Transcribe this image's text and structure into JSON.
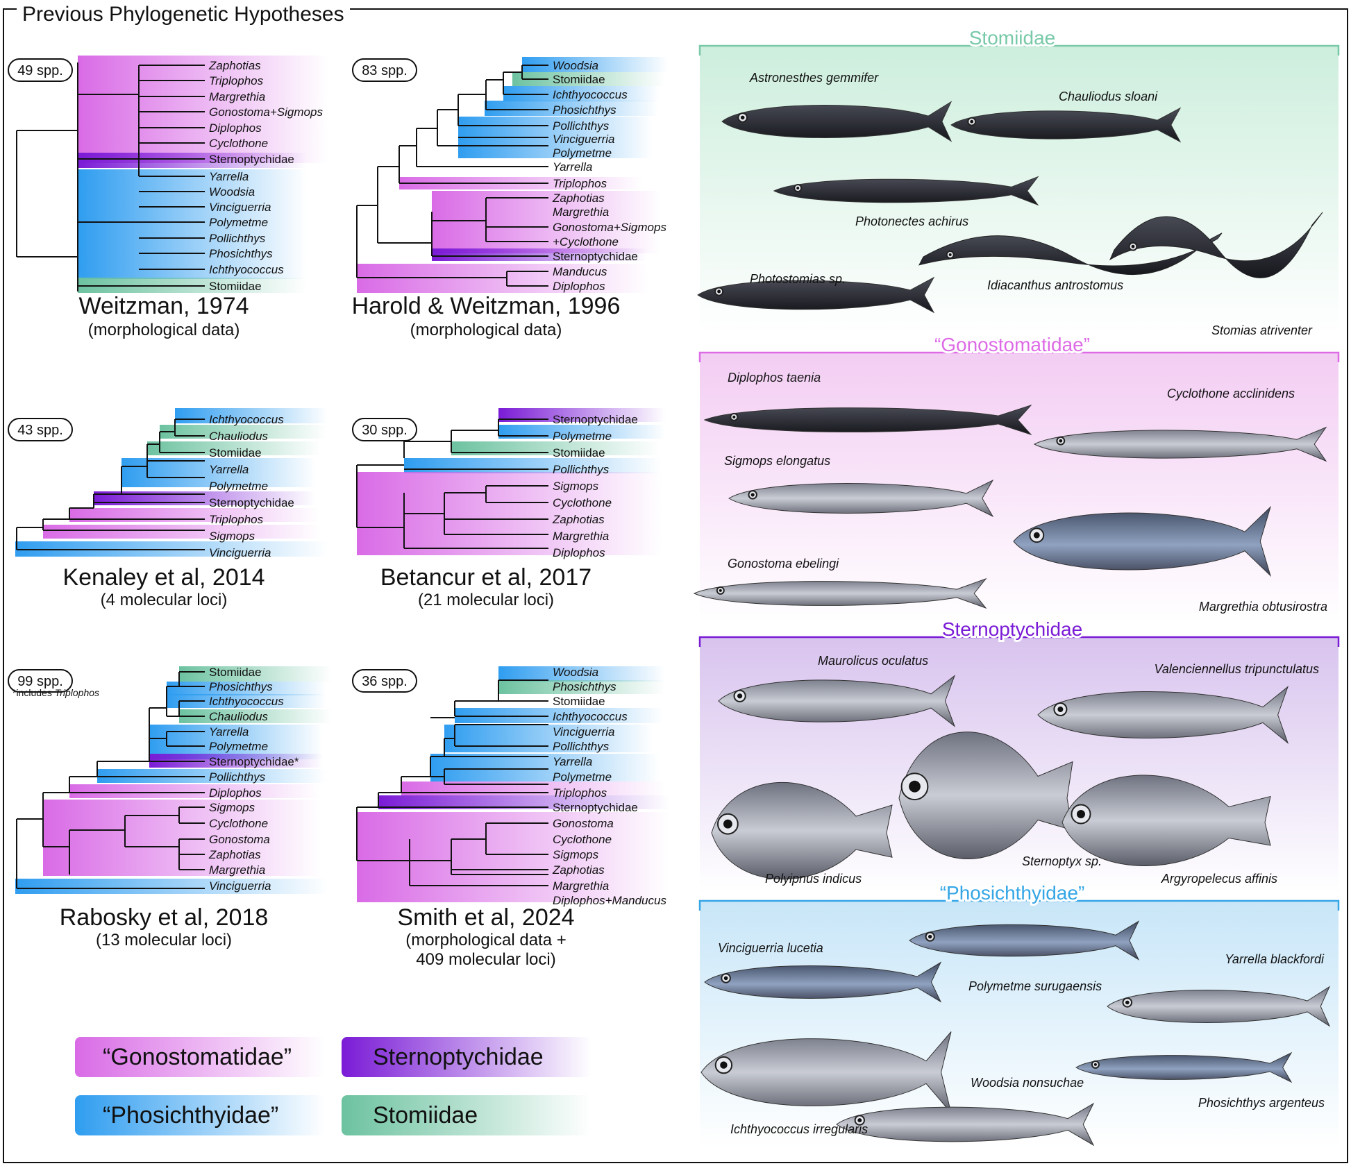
{
  "title": "Previous Phylogenetic Hypotheses",
  "colors": {
    "gonostomatidae": "#d96be6",
    "phosichthyidae": "#2f9df0",
    "sternoptychidae": "#7a1bd6",
    "stomiidae": "#6cc2a0",
    "stomiidae_label": "#78c9a8",
    "gonostomatidae_label": "#dd6be6",
    "sternoptychidae_label": "#7a1bd6",
    "phosichthyidae_label": "#35a6e6"
  },
  "trees": [
    {
      "id": "weitzman-1974",
      "species": "49 spp.",
      "title": "Weitzman, 1974",
      "subtitle": [
        "(morphological data)"
      ],
      "taxa": [
        "Zaphotias",
        "Triplophos",
        "Margrethia",
        "Gonostoma+Sigmops",
        "Diplophos",
        "Cyclothone",
        "Sternoptychidae",
        "Yarrella",
        "Woodsia",
        "Vinciguerria",
        "Polymetme",
        "Pollichthys",
        "Phosichthys",
        "Ichthyococcus",
        "Stomiidae"
      ]
    },
    {
      "id": "harold-weitzman-1996",
      "species": "83 spp.",
      "title": "Harold & Weitzman, 1996",
      "subtitle": [
        "(morphological data)"
      ],
      "taxa": [
        "Woodsia",
        "Stomiidae",
        "Ichthyococcus",
        "Phosichthys",
        "Pollichthys",
        "Vinciguerria",
        "Polymetme",
        "Yarrella",
        "Triplophos",
        "Zaphotias",
        "Margrethia",
        "Gonostoma+Sigmops",
        "+Cyclothone",
        "Sternoptychidae",
        "Manducus",
        "Diplophos"
      ]
    },
    {
      "id": "kenaley-2014",
      "species": "43 spp.",
      "title": "Kenaley et al, 2014",
      "subtitle": [
        "(4 molecular loci)"
      ],
      "taxa": [
        "Ichthyococcus",
        "Chauliodus",
        "Stomiidae",
        "Yarrella",
        "Polymetme",
        "Sternoptychidae",
        "Triplophos",
        "Sigmops",
        "Vinciguerria"
      ]
    },
    {
      "id": "betancur-2017",
      "species": "30 spp.",
      "title": "Betancur et al, 2017",
      "subtitle": [
        "(21 molecular loci)"
      ],
      "taxa": [
        "Sternoptychidae",
        "Polymetme",
        "Stomiidae",
        "Pollichthys",
        "Sigmops",
        "Cyclothone",
        "Zaphotias",
        "Margrethia",
        "Diplophos"
      ]
    },
    {
      "id": "rabosky-2018",
      "species": "99 spp.",
      "title": "Rabosky et al, 2018",
      "subtitle": [
        "(13 molecular loci)"
      ],
      "note": "*includes ",
      "note_italic": "Triplophos",
      "taxa": [
        "Stomiidae",
        "Phosichthys",
        "Ichthyococcus",
        "Chauliodus",
        "Yarrella",
        "Polymetme",
        "Sternoptychidae*",
        "Pollichthys",
        "Diplophos",
        "Sigmops",
        "Cyclothone",
        "Gonostoma",
        "Zaphotias",
        "Margrethia",
        "Vinciguerria"
      ]
    },
    {
      "id": "smith-2024",
      "species": "36 spp.",
      "title": "Smith et al, 2024",
      "subtitle": [
        "(morphological data +",
        "409 molecular loci)"
      ],
      "taxa": [
        "Woodsia",
        "Phosichthys",
        "Stomiidae",
        "Ichthyococcus",
        "Vinciguerria",
        "Pollichthys",
        "Yarrella",
        "Polymetme",
        "Triplophos",
        "Sternoptychidae",
        "Gonostoma",
        "Cyclothone",
        "Sigmops",
        "Zaphotias",
        "Margrethia",
        "Diplophos+Manducus"
      ]
    }
  ],
  "legend": [
    "“Gonostomatidae”",
    "Sternoptychidae",
    "“Phosichthyidae”",
    "Stomiidae"
  ],
  "panels": [
    {
      "id": "stomiidae",
      "label": "Stomiidae",
      "fish": [
        "Astronesthes gemmifer",
        "Chauliodus sloani",
        "Photonectes achirus",
        "Idiacanthus antrostomus",
        "Photostomias sp.",
        "Stomias atriventer"
      ]
    },
    {
      "id": "gonostomatidae",
      "label": "“Gonostomatidae”",
      "fish": [
        "Diplophos taenia",
        "Cyclothone acclinidens",
        "Sigmops elongatus",
        "Gonostoma ebelingi",
        "Margrethia obtusirostra"
      ]
    },
    {
      "id": "sternoptychidae",
      "label": "Sternoptychidae",
      "fish": [
        "Maurolicus oculatus",
        "Valenciennellus tripunctulatus",
        "Polyipnus indicus",
        "Sternoptyx sp.",
        "Argyropelecus affinis"
      ]
    },
    {
      "id": "phosichthyidae",
      "label": "“Phosichthyidae”",
      "fish": [
        "Vinciguerria lucetia",
        "Polymetme surugaensis",
        "Yarrella blackfordi",
        "Woodsia nonsuchae",
        "Phosichthys argenteus",
        "Ichthyococcus irregularis"
      ]
    }
  ]
}
